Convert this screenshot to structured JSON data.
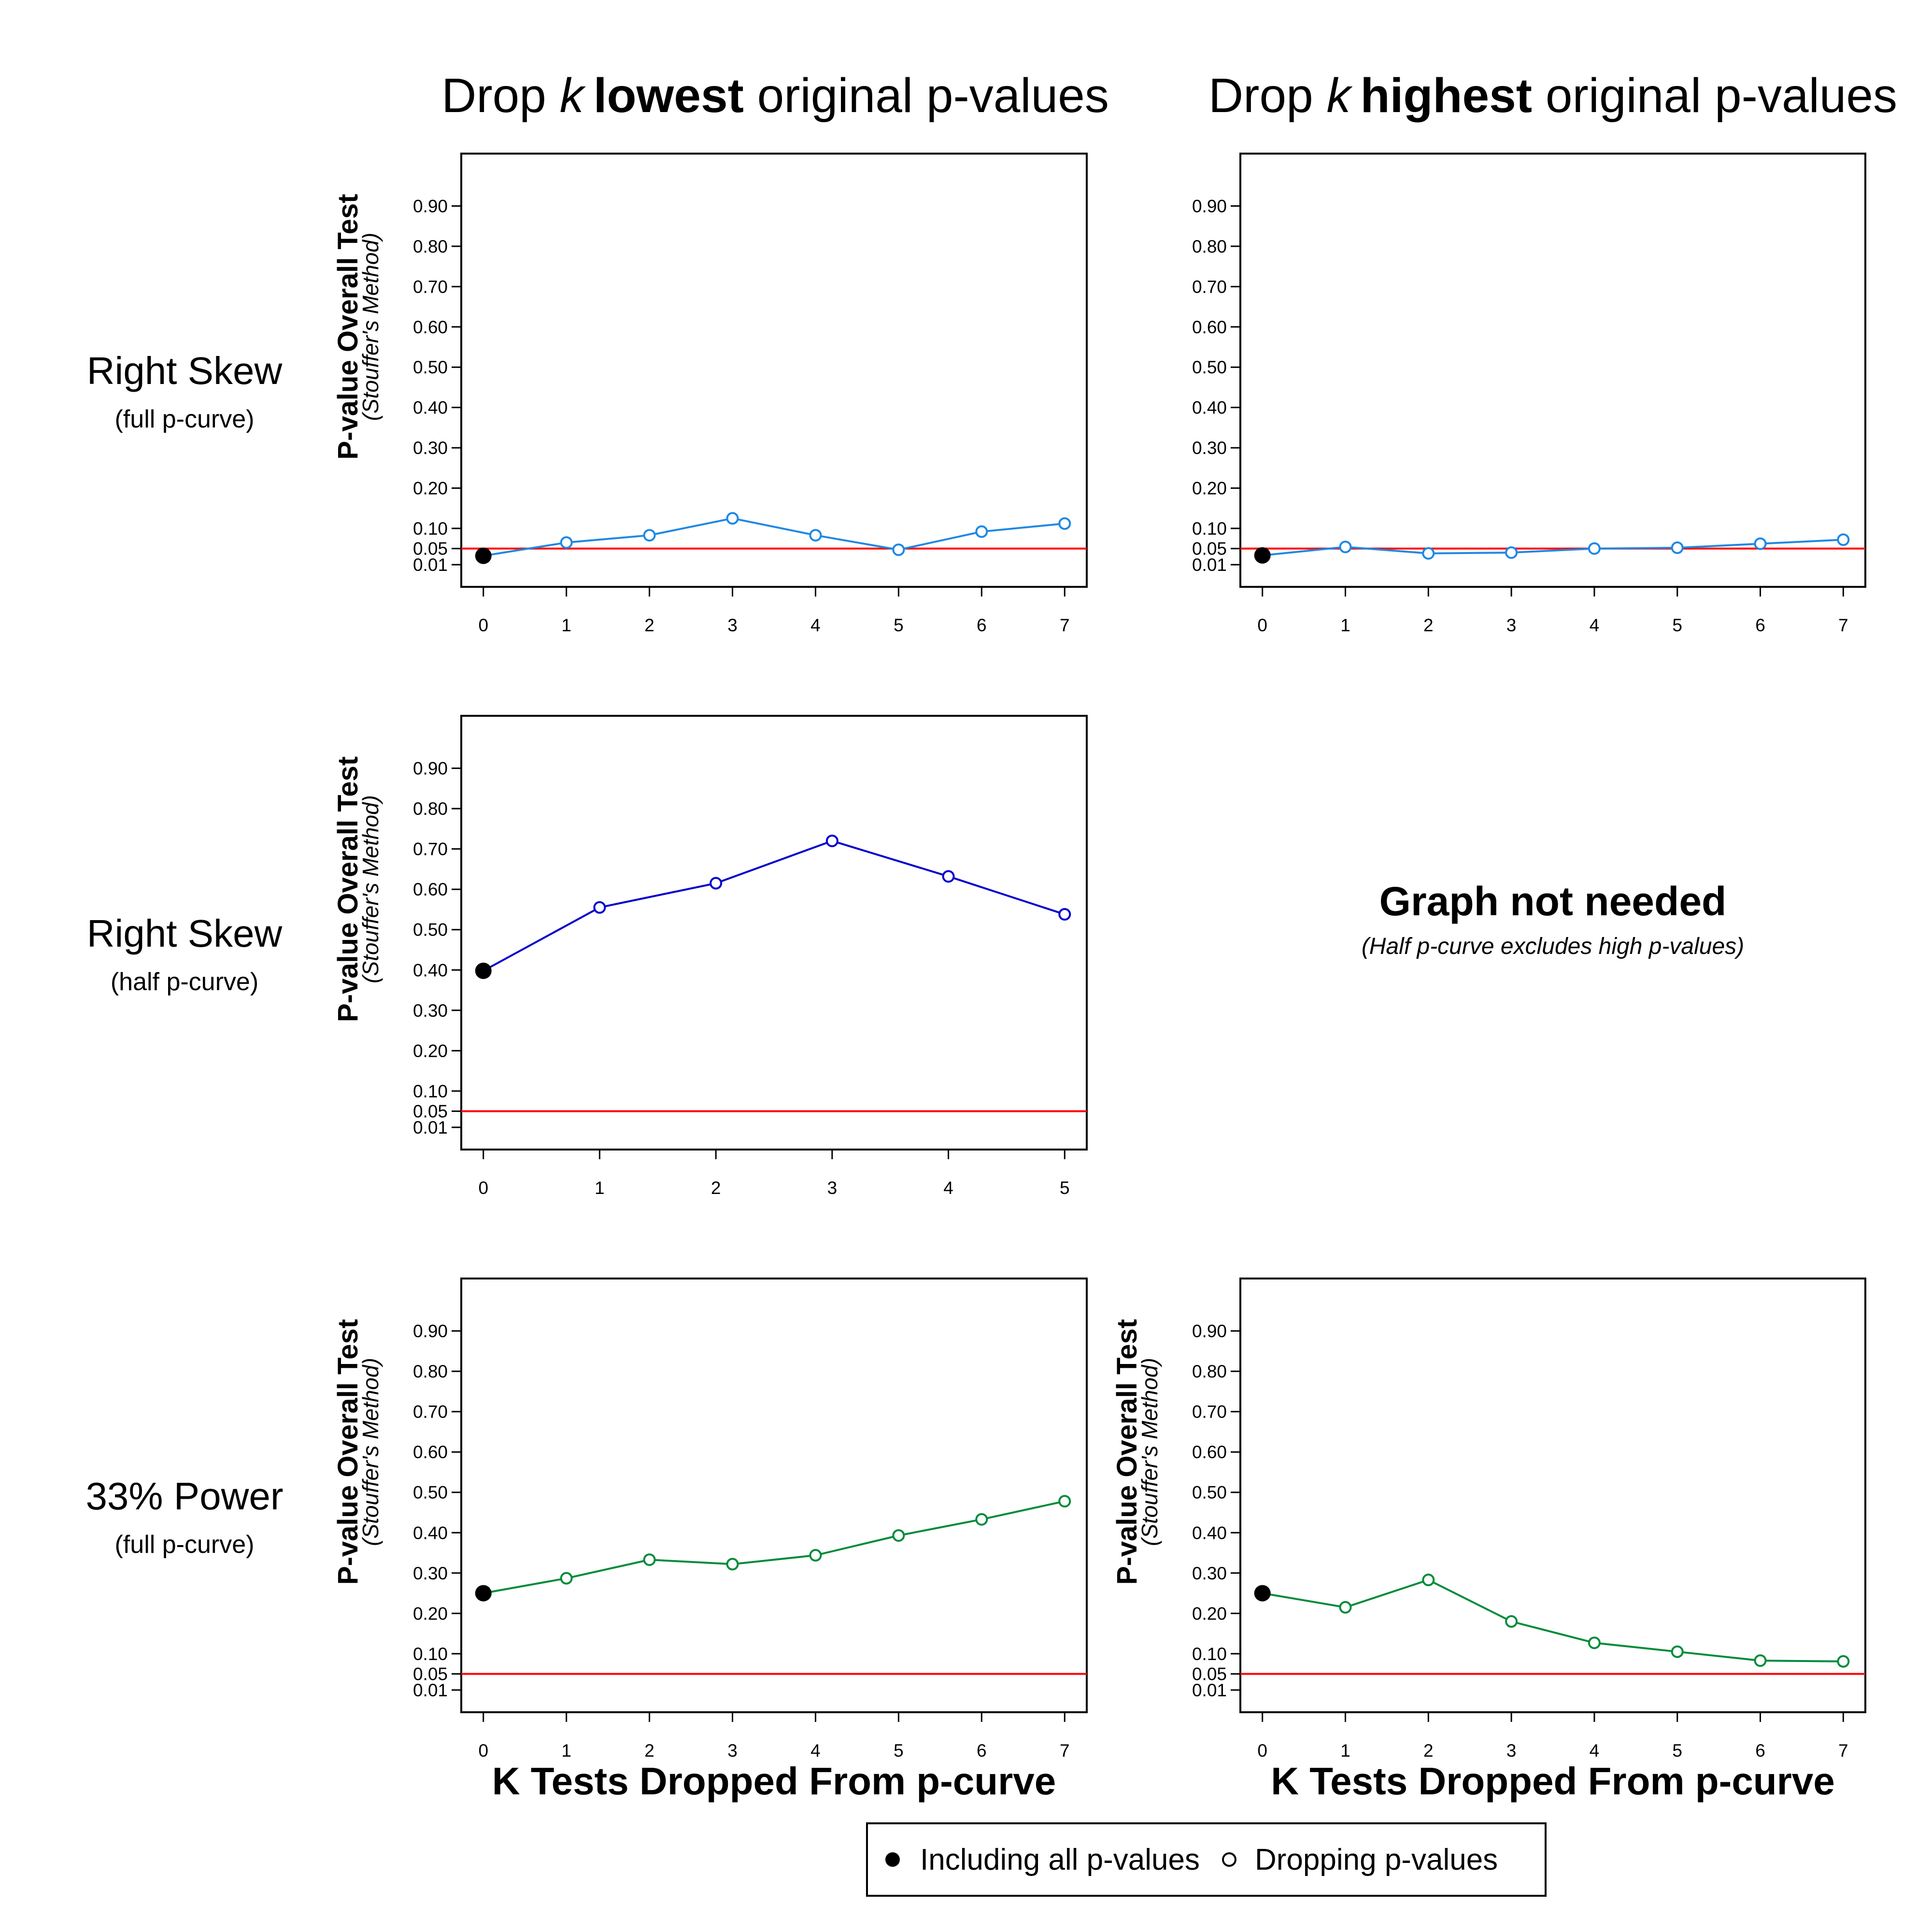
{
  "col_titles": [
    {
      "pre": "Drop ",
      "k": "k",
      "strong": "lowest",
      "post": " original p-values"
    },
    {
      "pre": "Drop ",
      "k": "k",
      "strong": "highest",
      "post": " original p-values"
    }
  ],
  "row_labels": [
    {
      "title": "Right Skew",
      "sub": "(full p-curve)",
      "color": "#1E88E5"
    },
    {
      "title": "Right Skew",
      "sub": "(half p-curve)",
      "color": "#0000CD"
    },
    {
      "title": "33% Power",
      "sub": "(full p-curve)",
      "color": "#008B3A"
    }
  ],
  "y_axis_label": "P-value Overall Test",
  "y_axis_sublabel": "(Stouffer's Method)",
  "x_axis_label": "K Tests Dropped From p-curve",
  "y_ticks": [
    "0.01",
    "0.05",
    "0.10",
    "0.20",
    "0.30",
    "0.40",
    "0.50",
    "0.60",
    "0.70",
    "0.80",
    "0.90"
  ],
  "threshold_color": "#FF0000",
  "graph_not_needed": {
    "title": "Graph not needed",
    "sub": "(Half p-curve excludes high p-values)"
  },
  "legend": {
    "including": "Including all p-values",
    "dropping": "Dropping p-values"
  },
  "chart_data": [
    {
      "type": "line",
      "id": "full-lowest",
      "x": [
        0,
        1,
        2,
        3,
        4,
        5,
        6,
        7
      ],
      "y": [
        0.032,
        0.065,
        0.083,
        0.125,
        0.083,
        0.047,
        0.092,
        0.112
      ],
      "ylim": [
        -0.045,
        1.03
      ],
      "threshold": 0.05,
      "color": "#1E88E5",
      "xlabel": "",
      "show_y_label": true
    },
    {
      "type": "line",
      "id": "full-highest",
      "x": [
        0,
        1,
        2,
        3,
        4,
        5,
        6,
        7
      ],
      "y": [
        0.033,
        0.054,
        0.038,
        0.04,
        0.05,
        0.052,
        0.062,
        0.072
      ],
      "ylim": [
        -0.045,
        1.03
      ],
      "threshold": 0.05,
      "color": "#1E88E5",
      "xlabel": "",
      "show_y_label": false
    },
    {
      "type": "line",
      "id": "half-lowest",
      "x": [
        0,
        1,
        2,
        3,
        4,
        5
      ],
      "y": [
        0.398,
        0.555,
        0.615,
        0.72,
        0.632,
        0.538
      ],
      "ylim": [
        -0.045,
        1.03
      ],
      "threshold": 0.05,
      "color": "#0000CD",
      "xlabel": "",
      "show_y_label": true
    },
    {
      "type": "line",
      "id": "power-lowest",
      "x": [
        0,
        1,
        2,
        3,
        4,
        5,
        6,
        7
      ],
      "y": [
        0.25,
        0.287,
        0.333,
        0.322,
        0.344,
        0.393,
        0.433,
        0.478
      ],
      "ylim": [
        -0.045,
        1.03
      ],
      "threshold": 0.05,
      "color": "#008B3A",
      "xlabel": "K Tests Dropped From p-curve",
      "show_y_label": true
    },
    {
      "type": "line",
      "id": "power-highest",
      "x": [
        0,
        1,
        2,
        3,
        4,
        5,
        6,
        7
      ],
      "y": [
        0.25,
        0.215,
        0.283,
        0.18,
        0.127,
        0.105,
        0.083,
        0.081
      ],
      "ylim": [
        -0.045,
        1.03
      ],
      "threshold": 0.05,
      "color": "#008B3A",
      "xlabel": "K Tests Dropped From p-curve",
      "show_y_label": true
    }
  ]
}
